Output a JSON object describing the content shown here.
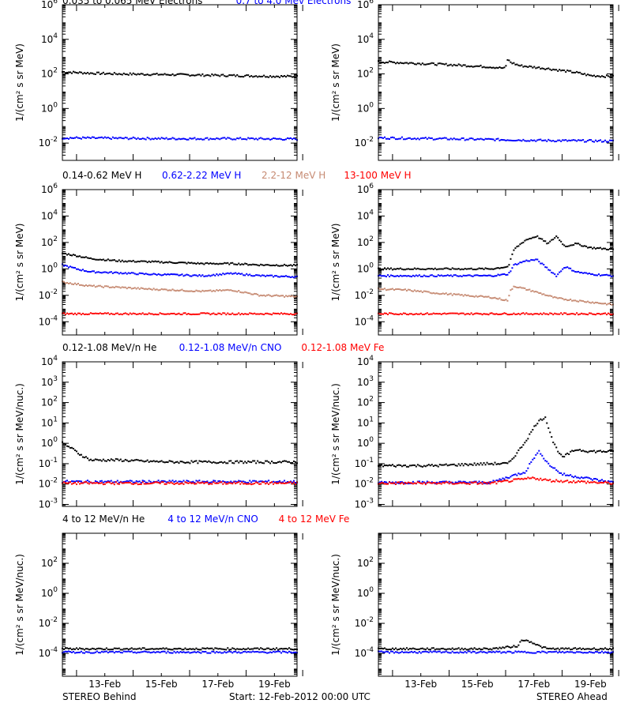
{
  "figure": {
    "footer_left": "STEREO Behind",
    "footer_center": "Start: 12-Feb-2012 00:00 UTC",
    "footer_right": "STEREO Ahead",
    "x_ticks": [
      "13-Feb",
      "15-Feb",
      "17-Feb",
      "19-Feb"
    ]
  },
  "chart_data": [
    {
      "type": "scatter",
      "row": 1,
      "panel": "STEREO Behind",
      "ylabel": "1/(cm² s sr MeV)",
      "yscale": "log",
      "ylim": [
        0.001,
        1000000
      ],
      "ytick_exponents": [
        -2,
        0,
        2,
        4,
        6
      ],
      "xlim": [
        0,
        8.3
      ],
      "legend": [
        {
          "label": "0.035 to 0.065 MeV Electrons",
          "color": "#000000"
        },
        {
          "label": "0.7 to 4.0 Mev Electrons",
          "color": "#0000ff"
        }
      ],
      "series": [
        {
          "name": "0.035 to 0.065 MeV Electrons",
          "color": "#000000",
          "x": [
            0,
            1,
            2,
            3,
            4,
            5,
            6,
            7,
            8.3
          ],
          "y": [
            130,
            110,
            100,
            95,
            90,
            85,
            80,
            75,
            70
          ]
        },
        {
          "name": "0.7 to 4.0 Mev Electrons",
          "color": "#0000ff",
          "x": [
            0,
            2,
            4,
            6,
            8.3
          ],
          "y": [
            0.02,
            0.019,
            0.018,
            0.018,
            0.017
          ]
        }
      ]
    },
    {
      "type": "scatter",
      "row": 1,
      "panel": "STEREO Ahead",
      "ylabel": "1/(cm² s sr MeV)",
      "yscale": "log",
      "ylim": [
        0.001,
        1000000
      ],
      "ytick_exponents": [
        -2,
        0,
        2,
        4,
        6
      ],
      "xlim": [
        0,
        8.3
      ],
      "series": [
        {
          "name": "0.035 to 0.065 MeV Electrons",
          "color": "#000000",
          "x": [
            0,
            1,
            2,
            3,
            4,
            4.5,
            4.55,
            4.7,
            5,
            6,
            7,
            7.5,
            8.3
          ],
          "y": [
            500,
            430,
            370,
            310,
            250,
            210,
            700,
            450,
            300,
            200,
            120,
            80,
            70
          ]
        },
        {
          "name": "0.7 to 4.0 Mev Electrons",
          "color": "#0000ff",
          "x": [
            0,
            2,
            4,
            6,
            8.3
          ],
          "y": [
            0.02,
            0.018,
            0.016,
            0.014,
            0.013
          ]
        }
      ]
    },
    {
      "type": "scatter",
      "row": 2,
      "panel": "STEREO Behind",
      "ylabel": "1/(cm² s sr MeV)",
      "yscale": "log",
      "ylim": [
        1e-05,
        1000000
      ],
      "ytick_exponents": [
        -4,
        -2,
        0,
        2,
        4,
        6
      ],
      "xlim": [
        0,
        8.3
      ],
      "legend": [
        {
          "label": "0.14-0.62 MeV H",
          "color": "#000000"
        },
        {
          "label": "0.62-2.22 MeV H",
          "color": "#0000ff"
        },
        {
          "label": "2.2-12 MeV H",
          "color": "#c68a72"
        },
        {
          "label": "13-100 MeV H",
          "color": "#ff0000"
        }
      ],
      "series": [
        {
          "name": "0.14-0.62 MeV H",
          "color": "#000000",
          "x": [
            0,
            0.5,
            1,
            2,
            3,
            4,
            5,
            6,
            7,
            8.3
          ],
          "y": [
            15,
            10,
            6,
            4,
            3.5,
            3,
            2.5,
            2.5,
            2,
            1.8
          ]
        },
        {
          "name": "0.62-2.22 MeV H",
          "color": "#0000ff",
          "x": [
            0,
            0.5,
            1,
            2,
            3,
            4,
            5,
            6,
            7,
            8.3
          ],
          "y": [
            2,
            1,
            0.6,
            0.5,
            0.4,
            0.35,
            0.3,
            0.45,
            0.3,
            0.25
          ]
        },
        {
          "name": "2.2-12 MeV H",
          "color": "#c68a72",
          "x": [
            0,
            1,
            2,
            3,
            4,
            5,
            6,
            7,
            8.3
          ],
          "y": [
            0.1,
            0.05,
            0.04,
            0.03,
            0.025,
            0.02,
            0.025,
            0.01,
            0.008
          ]
        },
        {
          "name": "13-100 MeV H",
          "color": "#ff0000",
          "x": [
            0,
            2,
            4,
            6,
            8.3
          ],
          "y": [
            0.0004,
            0.0004,
            0.0004,
            0.0004,
            0.0004
          ]
        }
      ]
    },
    {
      "type": "scatter",
      "row": 2,
      "panel": "STEREO Ahead",
      "ylabel": "1/(cm² s sr MeV)",
      "yscale": "log",
      "ylim": [
        1e-05,
        1000000
      ],
      "ytick_exponents": [
        -4,
        -2,
        0,
        2,
        4,
        6
      ],
      "xlim": [
        0,
        8.3
      ],
      "series": [
        {
          "name": "0.14-0.62 MeV H",
          "color": "#000000",
          "x": [
            0,
            1,
            2,
            3,
            4,
            4.6,
            4.8,
            5.2,
            5.6,
            6,
            6.3,
            6.6,
            7,
            7.5,
            8.3
          ],
          "y": [
            1,
            1,
            1,
            1,
            1,
            1.5,
            30,
            150,
            300,
            80,
            300,
            50,
            80,
            40,
            30
          ]
        },
        {
          "name": "0.62-2.22 MeV H",
          "color": "#0000ff",
          "x": [
            0,
            1,
            2,
            3,
            4,
            4.6,
            4.8,
            5.2,
            5.6,
            6,
            6.3,
            6.6,
            7,
            7.5,
            8.3
          ],
          "y": [
            0.3,
            0.3,
            0.3,
            0.3,
            0.3,
            0.4,
            2,
            4,
            5,
            1,
            0.3,
            1.5,
            0.6,
            0.4,
            0.3
          ]
        },
        {
          "name": "2.2-12 MeV H",
          "color": "#c68a72",
          "x": [
            0,
            1,
            2,
            3,
            4,
            4.6,
            4.65,
            4.8,
            5.5,
            6.3,
            7,
            8.3
          ],
          "y": [
            0.03,
            0.025,
            0.015,
            0.01,
            0.007,
            0.004,
            0.02,
            0.05,
            0.02,
            0.006,
            0.004,
            0.002
          ]
        },
        {
          "name": "13-100 MeV H",
          "color": "#ff0000",
          "x": [
            0,
            2,
            4,
            6,
            8.3
          ],
          "y": [
            0.0004,
            0.0004,
            0.0004,
            0.0004,
            0.0004
          ]
        }
      ]
    },
    {
      "type": "scatter",
      "row": 3,
      "panel": "STEREO Behind",
      "ylabel": "1/(cm² s sr MeV/nuc.)",
      "yscale": "log",
      "ylim": [
        0.0008,
        10000
      ],
      "ytick_exponents": [
        -3,
        -2,
        -1,
        0,
        1,
        2,
        3,
        4
      ],
      "xlim": [
        0,
        8.3
      ],
      "legend": [
        {
          "label": "0.12-1.08 MeV/n He",
          "color": "#000000"
        },
        {
          "label": "0.12-1.08 MeV/n CNO",
          "color": "#0000ff"
        },
        {
          "label": "0.12-1.08 MeV Fe",
          "color": "#ff0000"
        }
      ],
      "series": [
        {
          "name": "0.12-1.08 MeV/n He",
          "color": "#000000",
          "x": [
            0,
            0.3,
            0.6,
            1,
            2,
            3,
            4,
            5,
            6,
            7,
            8.3
          ],
          "y": [
            1,
            0.6,
            0.3,
            0.15,
            0.15,
            0.13,
            0.12,
            0.12,
            0.12,
            0.12,
            0.12
          ]
        },
        {
          "name": "0.12-1.08 MeV/n CNO",
          "color": "#0000ff",
          "x": [
            0,
            2,
            4,
            6,
            8.3
          ],
          "y": [
            0.013,
            0.013,
            0.013,
            0.013,
            0.013
          ]
        },
        {
          "name": "0.12-1.08 MeV Fe",
          "color": "#ff0000",
          "x": [
            0,
            2,
            4,
            6,
            8.3
          ],
          "y": [
            0.011,
            0.011,
            0.011,
            0.011,
            0.011
          ]
        }
      ]
    },
    {
      "type": "scatter",
      "row": 3,
      "panel": "STEREO Ahead",
      "ylabel": "1/(cm² s sr MeV/nuc.)",
      "yscale": "log",
      "ylim": [
        0.0008,
        10000
      ],
      "ytick_exponents": [
        -3,
        -2,
        -1,
        0,
        1,
        2,
        3,
        4
      ],
      "xlim": [
        0,
        8.3
      ],
      "series": [
        {
          "name": "0.12-1.08 MeV/n He",
          "color": "#000000",
          "x": [
            0,
            1,
            2,
            3,
            4,
            4.6,
            5,
            5.3,
            5.6,
            5.9,
            6.2,
            6.5,
            7,
            7.5,
            8.3
          ],
          "y": [
            0.08,
            0.08,
            0.08,
            0.09,
            0.1,
            0.1,
            0.5,
            2,
            10,
            20,
            1,
            0.2,
            0.5,
            0.4,
            0.4
          ]
        },
        {
          "name": "0.12-1.08 MeV/n CNO",
          "color": "#0000ff",
          "x": [
            0,
            2,
            4,
            5.2,
            5.5,
            5.7,
            6,
            6.5,
            8.3
          ],
          "y": [
            0.012,
            0.012,
            0.012,
            0.04,
            0.2,
            0.4,
            0.1,
            0.03,
            0.012
          ]
        },
        {
          "name": "0.12-1.08 MeV Fe",
          "color": "#ff0000",
          "x": [
            0,
            2,
            4,
            5.5,
            6,
            8.3
          ],
          "y": [
            0.011,
            0.011,
            0.011,
            0.02,
            0.015,
            0.011
          ]
        }
      ]
    },
    {
      "type": "scatter",
      "row": 4,
      "panel": "STEREO Behind",
      "ylabel": "1/(cm² s sr MeV/nuc.)",
      "yscale": "log",
      "ylim": [
        3e-06,
        10000
      ],
      "ytick_exponents": [
        -4,
        -2,
        0,
        2
      ],
      "xlim": [
        0,
        8.3
      ],
      "legend": [
        {
          "label": "4 to 12 MeV/n He",
          "color": "#000000"
        },
        {
          "label": "4 to 12 MeV/n CNO",
          "color": "#0000ff"
        },
        {
          "label": "4 to 12 MeV Fe",
          "color": "#ff0000"
        }
      ],
      "series": [
        {
          "name": "4 to 12 MeV/n He",
          "color": "#000000",
          "x": [
            0,
            2,
            4,
            6,
            8.3
          ],
          "y": [
            0.0002,
            0.0002,
            0.0002,
            0.0002,
            0.0002
          ]
        },
        {
          "name": "4 to 12 MeV/n CNO",
          "color": "#0000ff",
          "x": [
            0,
            2,
            4,
            6,
            8.3
          ],
          "y": [
            0.00012,
            0.00012,
            0.00012,
            0.00012,
            0.00012
          ]
        }
      ]
    },
    {
      "type": "scatter",
      "row": 4,
      "panel": "STEREO Ahead",
      "ylabel": "1/(cm² s sr MeV/nuc.)",
      "yscale": "log",
      "ylim": [
        3e-06,
        10000
      ],
      "ytick_exponents": [
        -4,
        -2,
        0,
        2
      ],
      "xlim": [
        0,
        8.3
      ],
      "series": [
        {
          "name": "4 to 12 MeV/n He",
          "color": "#000000",
          "x": [
            0,
            2,
            4,
            4.9,
            5.1,
            5.4,
            5.7,
            6,
            8.3
          ],
          "y": [
            0.0002,
            0.0002,
            0.0002,
            0.0003,
            0.0008,
            0.0006,
            0.0003,
            0.0002,
            0.0002
          ]
        },
        {
          "name": "4 to 12 MeV/n CNO",
          "color": "#0000ff",
          "x": [
            0,
            2,
            4,
            6,
            8.3
          ],
          "y": [
            0.00012,
            0.00012,
            0.00012,
            0.00012,
            0.00012
          ]
        }
      ]
    }
  ]
}
